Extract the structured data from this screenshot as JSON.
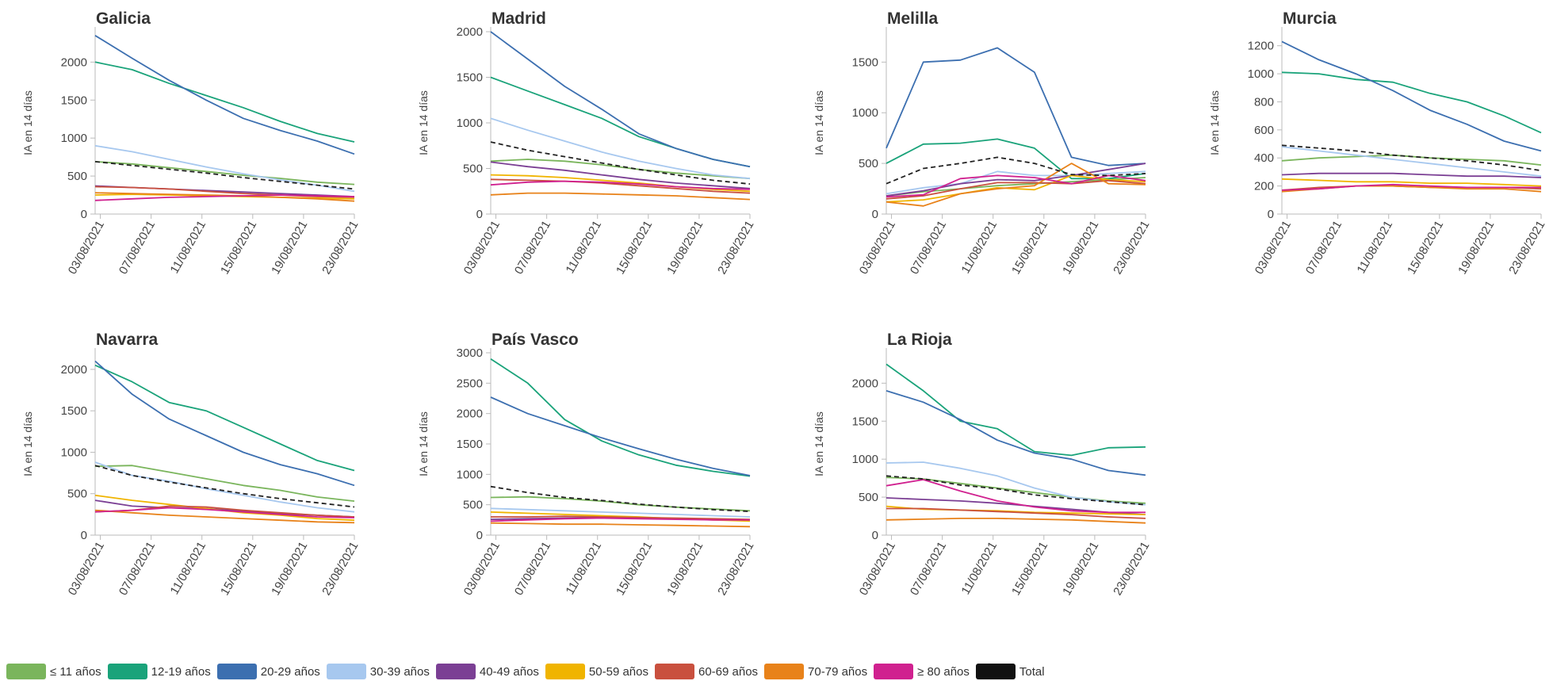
{
  "legend": [
    {
      "label": "≤ 11 años",
      "color": "#7ab55c"
    },
    {
      "label": "12-19 años",
      "color": "#1aa37a"
    },
    {
      "label": "20-29 años",
      "color": "#3c6fb0"
    },
    {
      "label": "30-39 años",
      "color": "#a7c8ef"
    },
    {
      "label": "40-49 años",
      "color": "#7b3f94"
    },
    {
      "label": "50-59 años",
      "color": "#f0b400"
    },
    {
      "label": "60-69 años",
      "color": "#c9503e"
    },
    {
      "label": "70-79 años",
      "color": "#e8821a"
    },
    {
      "label": "≥ 80 años",
      "color": "#d0218f"
    },
    {
      "label": "Total",
      "color": "#111111"
    }
  ],
  "chart_data": [
    {
      "type": "line",
      "title": "Galicia",
      "ylabel": "IA en 14 días",
      "x_ticks": [
        "03/08/2021",
        "07/08/2021",
        "11/08/2021",
        "15/08/2021",
        "19/08/2021",
        "23/08/2021"
      ],
      "ylim": [
        0,
        2400
      ],
      "yticks": [
        0,
        500,
        1000,
        1500,
        2000
      ],
      "series": [
        {
          "name": "≤ 11 años",
          "values": [
            690,
            660,
            610,
            560,
            510,
            470,
            420,
            390
          ]
        },
        {
          "name": "12-19 años",
          "values": [
            2000,
            1900,
            1720,
            1560,
            1400,
            1220,
            1060,
            950
          ]
        },
        {
          "name": "20-29 años",
          "values": [
            2350,
            2050,
            1760,
            1500,
            1260,
            1100,
            960,
            790
          ]
        },
        {
          "name": "30-39 años",
          "values": [
            900,
            820,
            720,
            620,
            530,
            450,
            380,
            300
          ]
        },
        {
          "name": "40-49 años",
          "values": [
            370,
            350,
            330,
            310,
            290,
            270,
            250,
            230
          ]
        },
        {
          "name": "50-59 años",
          "values": [
            250,
            260,
            250,
            240,
            230,
            220,
            210,
            200
          ]
        },
        {
          "name": "60-69 años",
          "values": [
            360,
            350,
            330,
            300,
            270,
            250,
            230,
            220
          ]
        },
        {
          "name": "70-79 años",
          "values": [
            280,
            270,
            260,
            250,
            240,
            220,
            200,
            170
          ]
        },
        {
          "name": "≥ 80 años",
          "values": [
            180,
            200,
            220,
            230,
            240,
            250,
            240,
            230
          ]
        },
        {
          "name": "Total",
          "values": [
            690,
            640,
            590,
            540,
            480,
            430,
            380,
            330
          ]
        }
      ]
    },
    {
      "type": "line",
      "title": "Madrid",
      "ylabel": "IA en 14 días",
      "x_ticks": [
        "03/08/2021",
        "07/08/2021",
        "11/08/2021",
        "15/08/2021",
        "19/08/2021",
        "23/08/2021"
      ],
      "ylim": [
        0,
        2000
      ],
      "yticks": [
        0,
        500,
        1000,
        1500,
        2000
      ],
      "series": [
        {
          "name": "≤ 11 años",
          "values": [
            580,
            600,
            580,
            540,
            490,
            450,
            420,
            390
          ]
        },
        {
          "name": "12-19 años",
          "values": [
            1500,
            1350,
            1200,
            1050,
            850,
            720,
            600,
            520
          ]
        },
        {
          "name": "20-29 años",
          "values": [
            2000,
            1700,
            1400,
            1150,
            880,
            720,
            600,
            520
          ]
        },
        {
          "name": "30-39 años",
          "values": [
            1050,
            920,
            800,
            680,
            580,
            500,
            430,
            390
          ]
        },
        {
          "name": "40-49 años",
          "values": [
            570,
            520,
            480,
            430,
            380,
            340,
            310,
            280
          ]
        },
        {
          "name": "50-59 años",
          "values": [
            430,
            420,
            400,
            370,
            340,
            300,
            270,
            250
          ]
        },
        {
          "name": "60-69 años",
          "values": [
            380,
            370,
            360,
            340,
            310,
            280,
            250,
            230
          ]
        },
        {
          "name": "70-79 años",
          "values": [
            210,
            230,
            230,
            220,
            210,
            200,
            180,
            160
          ]
        },
        {
          "name": "≥ 80 años",
          "values": [
            320,
            350,
            360,
            350,
            330,
            300,
            280,
            270
          ]
        },
        {
          "name": "Total",
          "values": [
            790,
            700,
            630,
            560,
            490,
            430,
            370,
            330
          ]
        }
      ]
    },
    {
      "type": "line",
      "title": "Melilla",
      "ylabel": "IA en 14 días",
      "x_ticks": [
        "03/08/2021",
        "07/08/2021",
        "11/08/2021",
        "15/08/2021",
        "19/08/2021",
        "23/08/2021"
      ],
      "ylim": [
        0,
        1800
      ],
      "yticks": [
        0,
        500,
        1000,
        1500
      ],
      "series": [
        {
          "name": "≤ 11 años",
          "values": [
            180,
            220,
            250,
            280,
            300,
            320,
            340,
            360
          ]
        },
        {
          "name": "12-19 años",
          "values": [
            500,
            690,
            700,
            740,
            650,
            350,
            350,
            400
          ]
        },
        {
          "name": "20-29 años",
          "values": [
            650,
            1500,
            1520,
            1640,
            1400,
            560,
            480,
            500
          ]
        },
        {
          "name": "30-39 años",
          "values": [
            200,
            260,
            300,
            420,
            380,
            380,
            400,
            420
          ]
        },
        {
          "name": "40-49 años",
          "values": [
            180,
            230,
            300,
            340,
            330,
            380,
            440,
            500
          ]
        },
        {
          "name": "50-59 años",
          "values": [
            120,
            140,
            200,
            260,
            240,
            380,
            340,
            320
          ]
        },
        {
          "name": "60-69 años",
          "values": [
            150,
            180,
            250,
            310,
            310,
            300,
            330,
            300
          ]
        },
        {
          "name": "70-79 años",
          "values": [
            120,
            80,
            200,
            250,
            280,
            500,
            300,
            290
          ]
        },
        {
          "name": "≥ 80 años",
          "values": [
            170,
            190,
            350,
            380,
            360,
            300,
            380,
            330
          ]
        },
        {
          "name": "Total",
          "values": [
            300,
            450,
            500,
            560,
            500,
            390,
            380,
            400
          ]
        }
      ]
    },
    {
      "type": "line",
      "title": "Murcia",
      "ylabel": "IA en 14 días",
      "x_ticks": [
        "03/08/2021",
        "07/08/2021",
        "11/08/2021",
        "15/08/2021",
        "19/08/2021",
        "23/08/2021"
      ],
      "ylim": [
        0,
        1300
      ],
      "yticks": [
        0,
        200,
        400,
        600,
        800,
        1000,
        1200
      ],
      "series": [
        {
          "name": "≤ 11 años",
          "values": [
            380,
            400,
            410,
            420,
            400,
            390,
            380,
            350
          ]
        },
        {
          "name": "12-19 años",
          "values": [
            1010,
            1000,
            960,
            940,
            860,
            800,
            700,
            580
          ]
        },
        {
          "name": "20-29 años",
          "values": [
            1230,
            1100,
            1000,
            880,
            740,
            640,
            520,
            450
          ]
        },
        {
          "name": "30-39 años",
          "values": [
            480,
            450,
            420,
            390,
            360,
            330,
            300,
            270
          ]
        },
        {
          "name": "40-49 años",
          "values": [
            280,
            290,
            290,
            290,
            280,
            270,
            270,
            260
          ]
        },
        {
          "name": "50-59 años",
          "values": [
            250,
            240,
            230,
            230,
            220,
            220,
            210,
            200
          ]
        },
        {
          "name": "60-69 años",
          "values": [
            170,
            190,
            200,
            200,
            190,
            190,
            190,
            180
          ]
        },
        {
          "name": "70-79 años",
          "values": [
            160,
            180,
            200,
            200,
            190,
            180,
            180,
            160
          ]
        },
        {
          "name": "≥ 80 años",
          "values": [
            170,
            180,
            200,
            210,
            200,
            190,
            190,
            190
          ]
        },
        {
          "name": "Total",
          "values": [
            490,
            470,
            450,
            420,
            400,
            380,
            350,
            310
          ]
        }
      ]
    },
    {
      "type": "line",
      "title": "Navarra",
      "ylabel": "IA en 14 días",
      "x_ticks": [
        "03/08/2021",
        "07/08/2021",
        "11/08/2021",
        "15/08/2021",
        "19/08/2021",
        "23/08/2021"
      ],
      "ylim": [
        0,
        2200
      ],
      "yticks": [
        0,
        500,
        1000,
        1500,
        2000
      ],
      "series": [
        {
          "name": "≤ 11 años",
          "values": [
            830,
            840,
            760,
            680,
            600,
            540,
            460,
            410
          ]
        },
        {
          "name": "12-19 años",
          "values": [
            2050,
            1850,
            1600,
            1500,
            1300,
            1100,
            900,
            780
          ]
        },
        {
          "name": "20-29 años",
          "values": [
            2100,
            1700,
            1400,
            1200,
            1000,
            850,
            740,
            600
          ]
        },
        {
          "name": "30-39 años",
          "values": [
            880,
            720,
            650,
            560,
            480,
            400,
            330,
            280
          ]
        },
        {
          "name": "40-49 años",
          "values": [
            420,
            350,
            330,
            320,
            290,
            260,
            240,
            220
          ]
        },
        {
          "name": "50-59 años",
          "values": [
            480,
            420,
            370,
            320,
            270,
            240,
            200,
            180
          ]
        },
        {
          "name": "60-69 años",
          "values": [
            280,
            300,
            350,
            340,
            300,
            270,
            240,
            220
          ]
        },
        {
          "name": "70-79 años",
          "values": [
            300,
            270,
            240,
            220,
            200,
            180,
            160,
            150
          ]
        },
        {
          "name": "≥ 80 años",
          "values": [
            280,
            300,
            330,
            310,
            280,
            250,
            220,
            210
          ]
        },
        {
          "name": "Total",
          "values": [
            840,
            720,
            640,
            570,
            500,
            440,
            390,
            340
          ]
        }
      ]
    },
    {
      "type": "line",
      "title": "País Vasco",
      "ylabel": "IA en 14 días",
      "x_ticks": [
        "03/08/2021",
        "07/08/2021",
        "11/08/2021",
        "15/08/2021",
        "19/08/2021",
        "23/08/2021"
      ],
      "ylim": [
        0,
        3000
      ],
      "yticks": [
        0,
        500,
        1000,
        1500,
        2000,
        2500,
        3000
      ],
      "series": [
        {
          "name": "≤ 11 años",
          "values": [
            620,
            630,
            600,
            560,
            500,
            460,
            430,
            400
          ]
        },
        {
          "name": "12-19 años",
          "values": [
            2900,
            2500,
            1900,
            1550,
            1320,
            1150,
            1050,
            970
          ]
        },
        {
          "name": "20-29 años",
          "values": [
            2270,
            2000,
            1800,
            1600,
            1420,
            1250,
            1100,
            980
          ]
        },
        {
          "name": "30-39 años",
          "values": [
            440,
            420,
            400,
            380,
            360,
            340,
            320,
            300
          ]
        },
        {
          "name": "40-49 años",
          "values": [
            260,
            270,
            280,
            290,
            280,
            270,
            260,
            250
          ]
        },
        {
          "name": "50-59 años",
          "values": [
            380,
            360,
            340,
            320,
            300,
            270,
            250,
            230
          ]
        },
        {
          "name": "60-69 años",
          "values": [
            300,
            300,
            310,
            300,
            290,
            280,
            270,
            260
          ]
        },
        {
          "name": "70-79 años",
          "values": [
            200,
            190,
            180,
            180,
            170,
            160,
            150,
            140
          ]
        },
        {
          "name": "≥ 80 años",
          "values": [
            230,
            250,
            270,
            280,
            270,
            260,
            250,
            250
          ]
        },
        {
          "name": "Total",
          "values": [
            800,
            700,
            620,
            570,
            510,
            460,
            420,
            390
          ]
        }
      ]
    },
    {
      "type": "line",
      "title": "La Rioja",
      "ylabel": "IA en 14 días",
      "x_ticks": [
        "03/08/2021",
        "07/08/2021",
        "11/08/2021",
        "15/08/2021",
        "19/08/2021",
        "23/08/2021"
      ],
      "ylim": [
        0,
        2400
      ],
      "yticks": [
        0,
        500,
        1000,
        1500,
        2000
      ],
      "series": [
        {
          "name": "≤ 11 años",
          "values": [
            760,
            740,
            680,
            620,
            560,
            500,
            450,
            420
          ]
        },
        {
          "name": "12-19 años",
          "values": [
            2250,
            1900,
            1500,
            1400,
            1100,
            1050,
            1150,
            1160
          ]
        },
        {
          "name": "20-29 años",
          "values": [
            1900,
            1750,
            1520,
            1250,
            1080,
            1000,
            850,
            790
          ]
        },
        {
          "name": "30-39 años",
          "values": [
            950,
            960,
            880,
            780,
            620,
            500,
            440,
            400
          ]
        },
        {
          "name": "40-49 años",
          "values": [
            490,
            470,
            450,
            420,
            380,
            340,
            300,
            270
          ]
        },
        {
          "name": "50-59 años",
          "values": [
            380,
            340,
            330,
            320,
            300,
            290,
            280,
            270
          ]
        },
        {
          "name": "60-69 años",
          "values": [
            350,
            350,
            330,
            310,
            290,
            270,
            240,
            220
          ]
        },
        {
          "name": "70-79 años",
          "values": [
            200,
            210,
            220,
            220,
            210,
            200,
            180,
            160
          ]
        },
        {
          "name": "≥ 80 años",
          "values": [
            650,
            730,
            580,
            450,
            370,
            320,
            300,
            300
          ]
        },
        {
          "name": "Total",
          "values": [
            780,
            740,
            660,
            610,
            530,
            480,
            440,
            400
          ]
        }
      ]
    }
  ]
}
